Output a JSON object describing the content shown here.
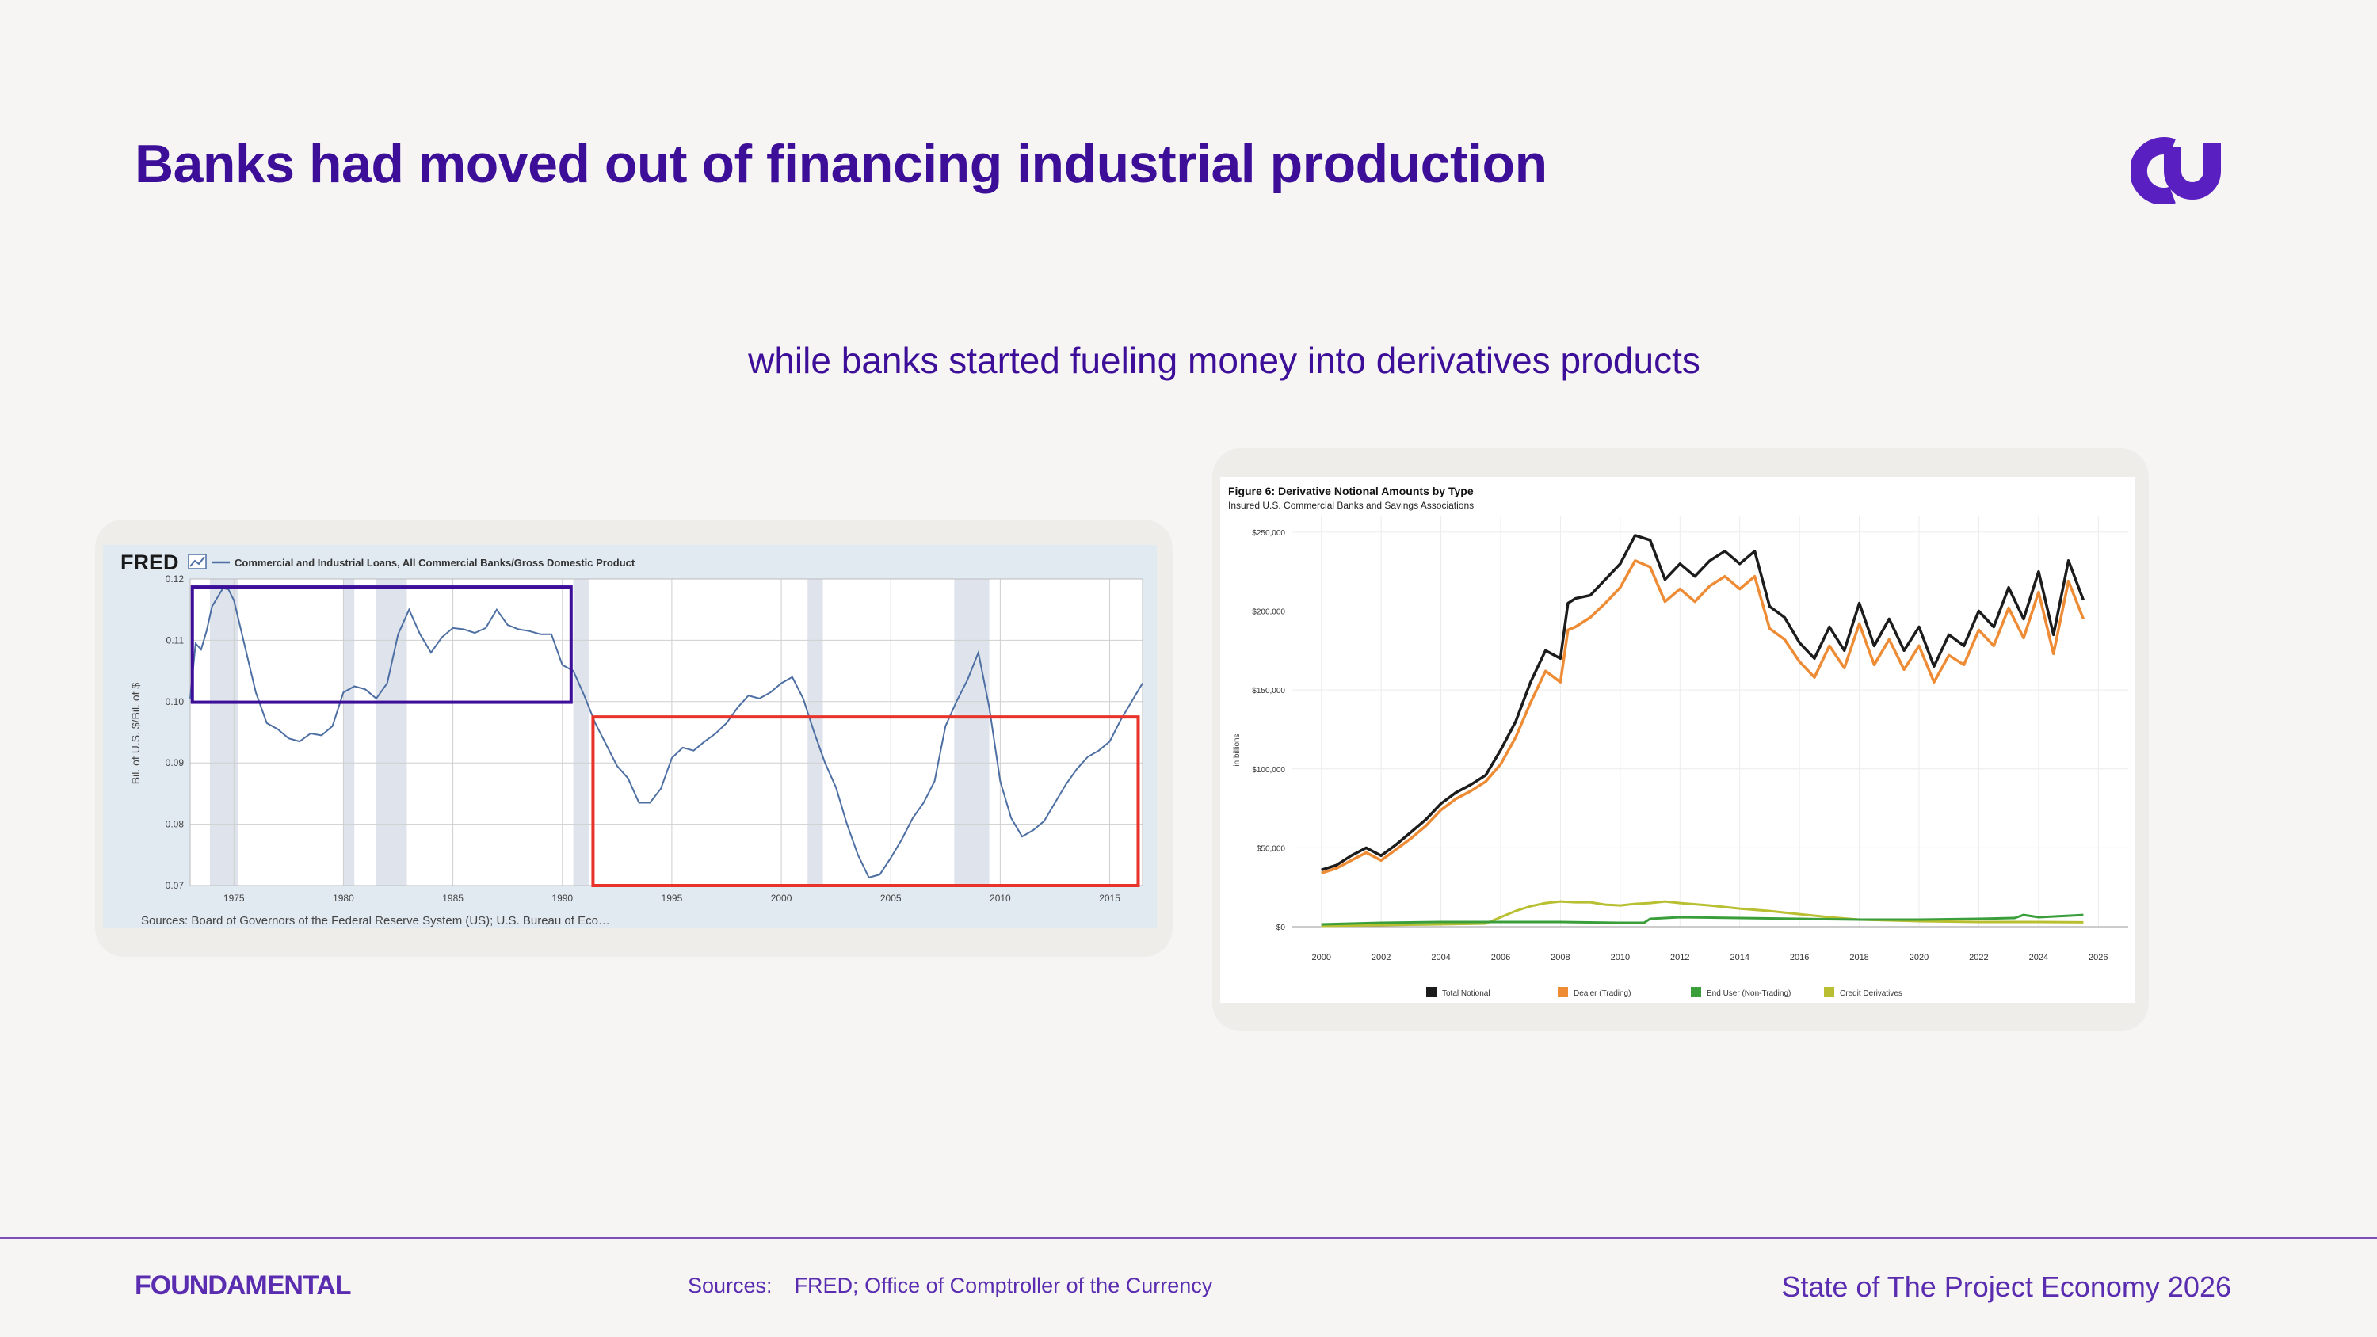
{
  "slide": {
    "title": "Banks had moved out of financing industrial production",
    "subtitle": "while banks started fueling money into derivatives products",
    "logo_icon": "foundamental-logo-icon",
    "colors": {
      "title": "#3d0f99",
      "footer": "#5a2db0",
      "highlight_purple": "#3d0f99",
      "highlight_red": "#e8332a"
    }
  },
  "footer": {
    "brand": "FOUNDAMENTAL",
    "sources_label": "Sources:",
    "sources_text": "FRED; Office of Comptroller of the Currency",
    "report": "State of The Project Economy 2026"
  },
  "chart_data": [
    {
      "type": "line",
      "source_logo": "FRED",
      "legend": "Commercial and Industrial Loans, All Commercial Banks/Gross Domestic Product",
      "ylabel": "Bil. of U.S. $/Bil. of $",
      "ylim": [
        0.07,
        0.12
      ],
      "xlim": [
        1973,
        2016.5
      ],
      "yticks": [
        "0.12",
        "0.11",
        "0.10",
        "0.09",
        "0.08",
        "0.07"
      ],
      "xticks": [
        "1975",
        "1980",
        "1985",
        "1990",
        "1995",
        "2000",
        "2005",
        "2010",
        "2015"
      ],
      "sources": "Sources: Board of Governors of the Federal Reserve System (US); U.S. Bureau of Eco…",
      "recessions": [
        [
          1973.9,
          1975.2
        ],
        [
          1980.0,
          1980.5
        ],
        [
          1981.5,
          1982.9
        ],
        [
          1990.5,
          1991.2
        ],
        [
          2001.2,
          2001.9
        ],
        [
          2007.9,
          2009.5
        ]
      ],
      "highlights": [
        {
          "color": "#3d0f99",
          "x": [
            1973.1,
            1990.4
          ],
          "y": [
            0.0999,
            0.1187
          ]
        },
        {
          "color": "#e8332a",
          "x": [
            1991.4,
            2016.3
          ],
          "y": [
            0.07,
            0.0975
          ]
        }
      ],
      "series": [
        {
          "color": "#4d6fa3",
          "x": [
            1973,
            1973.25,
            1973.5,
            1973.75,
            1974,
            1974.5,
            1974.75,
            1975,
            1975.5,
            1976,
            1976.5,
            1977,
            1977.5,
            1978,
            1978.5,
            1979,
            1979.5,
            1980,
            1980.5,
            1981,
            1981.5,
            1982,
            1982.5,
            1983,
            1983.5,
            1984,
            1984.5,
            1985,
            1985.5,
            1986,
            1986.5,
            1987,
            1987.5,
            1988,
            1988.5,
            1989,
            1989.5,
            1990,
            1990.5,
            1991,
            1991.5,
            1992,
            1992.5,
            1993,
            1993.5,
            1994,
            1994.5,
            1995,
            1995.5,
            1996,
            1996.5,
            1997,
            1997.5,
            1998,
            1998.5,
            1999,
            1999.5,
            2000,
            2000.5,
            2001,
            2001.5,
            2002,
            2002.5,
            2003,
            2003.5,
            2004,
            2004.5,
            2005,
            2005.5,
            2006,
            2006.5,
            2007,
            2007.5,
            2008,
            2008.5,
            2009,
            2009.5,
            2010,
            2010.5,
            2011,
            2011.5,
            2012,
            2012.5,
            2013,
            2013.5,
            2014,
            2014.5,
            2015,
            2015.5,
            2016,
            2016.5
          ],
          "values": [
            0.1005,
            0.1095,
            0.1085,
            0.1115,
            0.1155,
            0.1185,
            0.1183,
            0.1165,
            0.109,
            0.1015,
            0.0965,
            0.0955,
            0.094,
            0.0935,
            0.0948,
            0.0945,
            0.096,
            0.1015,
            0.1025,
            0.102,
            0.1005,
            0.103,
            0.111,
            0.115,
            0.111,
            0.108,
            0.1105,
            0.112,
            0.1118,
            0.1112,
            0.112,
            0.115,
            0.1125,
            0.1118,
            0.1115,
            0.111,
            0.111,
            0.106,
            0.105,
            0.101,
            0.0965,
            0.093,
            0.0895,
            0.0875,
            0.0835,
            0.0835,
            0.0858,
            0.0908,
            0.0925,
            0.092,
            0.0935,
            0.0948,
            0.0965,
            0.099,
            0.101,
            0.1005,
            0.1015,
            0.103,
            0.104,
            0.1005,
            0.095,
            0.09,
            0.086,
            0.08,
            0.075,
            0.0713,
            0.0718,
            0.0745,
            0.0775,
            0.081,
            0.0835,
            0.087,
            0.096,
            0.1,
            0.1035,
            0.108,
            0.099,
            0.087,
            0.081,
            0.078,
            0.079,
            0.0805,
            0.0835,
            0.0865,
            0.089,
            0.091,
            0.092,
            0.0935,
            0.097,
            0.1,
            0.103
          ]
        }
      ]
    },
    {
      "type": "line",
      "title": "Figure 6: Derivative Notional Amounts by Type",
      "subtitle": "Insured U.S. Commercial Banks and Savings Associations",
      "ylabel": "in billions",
      "ylim": [
        0,
        260000
      ],
      "xlim": [
        1999,
        2027
      ],
      "yticks": [
        "$250,000",
        "$200,000",
        "$150,000",
        "$100,000",
        "$50,000",
        "$0"
      ],
      "xticks": [
        "2000",
        "2002",
        "2004",
        "2006",
        "2008",
        "2010",
        "2012",
        "2014",
        "2016",
        "2018",
        "2020",
        "2022",
        "2024",
        "2026"
      ],
      "grid": true,
      "legend_position": "bottom",
      "series": [
        {
          "name": "Total Notional",
          "color": "#1c1c1c",
          "x": [
            2000,
            2000.5,
            2001,
            2001.5,
            2002,
            2002.5,
            2003,
            2003.5,
            2004,
            2004.5,
            2005,
            2005.5,
            2006,
            2006.5,
            2007,
            2007.5,
            2008,
            2008.25,
            2008.5,
            2009,
            2009.5,
            2010,
            2010.5,
            2011,
            2011.5,
            2012,
            2012.5,
            2013,
            2013.5,
            2014,
            2014.5,
            2015,
            2015.5,
            2016,
            2016.5,
            2017,
            2017.5,
            2018,
            2018.5,
            2019,
            2019.5,
            2020,
            2020.5,
            2021,
            2021.5,
            2022,
            2022.5,
            2023,
            2023.5,
            2024,
            2024.5,
            2025,
            2025.5
          ],
          "values": [
            36000,
            39000,
            45000,
            50000,
            45000,
            52000,
            60000,
            68000,
            78000,
            85000,
            90000,
            96000,
            112000,
            130000,
            155000,
            175000,
            170000,
            205000,
            208000,
            210000,
            220000,
            230000,
            248000,
            245000,
            220000,
            230000,
            222000,
            232000,
            238000,
            230000,
            238000,
            203000,
            196000,
            180000,
            170000,
            190000,
            175000,
            205000,
            178000,
            195000,
            175000,
            190000,
            165000,
            185000,
            178000,
            200000,
            190000,
            215000,
            195000,
            225000,
            185000,
            232000,
            207000
          ]
        },
        {
          "name": "Dealer (Trading)",
          "color": "#ee8b35",
          "x": [
            2000,
            2000.5,
            2001,
            2001.5,
            2002,
            2002.5,
            2003,
            2003.5,
            2004,
            2004.5,
            2005,
            2005.5,
            2006,
            2006.5,
            2007,
            2007.5,
            2008,
            2008.25,
            2008.5,
            2009,
            2009.5,
            2010,
            2010.5,
            2011,
            2011.5,
            2012,
            2012.5,
            2013,
            2013.5,
            2014,
            2014.5,
            2015,
            2015.5,
            2016,
            2016.5,
            2017,
            2017.5,
            2018,
            2018.5,
            2019,
            2019.5,
            2020,
            2020.5,
            2021,
            2021.5,
            2022,
            2022.5,
            2023,
            2023.5,
            2024,
            2024.5,
            2025,
            2025.5
          ],
          "values": [
            34000,
            37000,
            42000,
            47000,
            42000,
            49000,
            56000,
            64000,
            74000,
            81000,
            86000,
            92000,
            103000,
            120000,
            142000,
            162000,
            155000,
            188000,
            190000,
            196000,
            205000,
            215000,
            232000,
            228000,
            206000,
            214000,
            206000,
            216000,
            222000,
            214000,
            222000,
            189000,
            182000,
            168000,
            158000,
            178000,
            164000,
            192000,
            166000,
            182000,
            163000,
            178000,
            155000,
            172000,
            166000,
            188000,
            178000,
            202000,
            183000,
            212000,
            173000,
            219000,
            195000
          ]
        },
        {
          "name": "End User (Non-Trading)",
          "color": "#3a9f3a",
          "x": [
            2000,
            2002,
            2004,
            2006,
            2008,
            2010,
            2010.8,
            2011,
            2012,
            2014,
            2016,
            2018,
            2020,
            2022,
            2023.2,
            2023.5,
            2024,
            2025,
            2025.5
          ],
          "values": [
            1500,
            2500,
            3000,
            3000,
            3000,
            2500,
            2500,
            5000,
            6000,
            5500,
            5000,
            4500,
            4500,
            5000,
            5500,
            7500,
            6000,
            7000,
            7500
          ]
        },
        {
          "name": "Credit Derivatives",
          "color": "#b8bf31",
          "x": [
            2000,
            2002,
            2004,
            2005.5,
            2006,
            2006.5,
            2007,
            2007.5,
            2008,
            2008.5,
            2009,
            2009.5,
            2010,
            2010.5,
            2011,
            2011.5,
            2012,
            2013,
            2014,
            2015,
            2016,
            2017,
            2018,
            2020,
            2022,
            2024,
            2025.5
          ],
          "values": [
            500,
            1000,
            1500,
            2000,
            6000,
            10000,
            13000,
            15000,
            16000,
            15500,
            15500,
            14000,
            13500,
            14500,
            15000,
            16000,
            15000,
            13500,
            11500,
            10000,
            8000,
            6000,
            4500,
            3500,
            3000,
            3000,
            2800
          ]
        }
      ]
    }
  ]
}
